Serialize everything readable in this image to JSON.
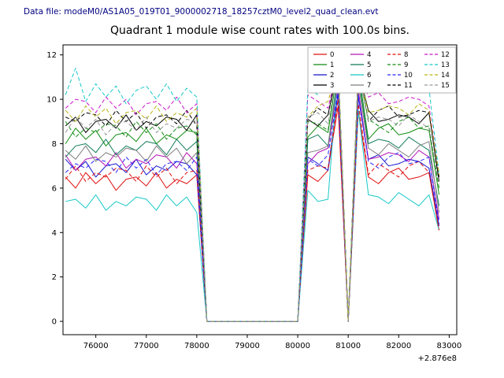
{
  "header": {
    "datafile": "Data file: modeM0/AS1A05_019T01_9000002718_18257cztM0_level2_quad_clean.evt"
  },
  "chart_data": {
    "type": "line",
    "title": "Quadrant 1 module wise count rates with 100.0s bins.",
    "xlabel": "",
    "ylabel": "",
    "x_offset_label": "+2.876e8",
    "xlim": [
      75350,
      83150
    ],
    "ylim": [
      -0.6,
      12.45
    ],
    "x_ticks": [
      76000,
      77000,
      78000,
      79000,
      80000,
      81000,
      82000,
      83000
    ],
    "y_ticks": [
      0,
      2,
      4,
      6,
      8,
      10,
      12
    ],
    "grid": false,
    "legend_position": "upper right",
    "x": [
      75400,
      75600,
      75800,
      76000,
      76200,
      76400,
      76600,
      76800,
      77000,
      77200,
      77400,
      77600,
      77800,
      78000,
      78200,
      78400,
      78600,
      78800,
      79000,
      79200,
      79400,
      79600,
      79800,
      80000,
      80200,
      80400,
      80600,
      80800,
      81000,
      81200,
      81400,
      81600,
      81800,
      82000,
      82200,
      82400,
      82600,
      82800
    ],
    "series": [
      {
        "name": "0",
        "color": "#e01010",
        "dash": false,
        "values": [
          6.5,
          6.0,
          6.7,
          6.2,
          6.6,
          5.9,
          6.4,
          6.5,
          6.1,
          6.7,
          6.0,
          6.4,
          6.2,
          6.6,
          0,
          0,
          0,
          0,
          0,
          0,
          0,
          0,
          0,
          0,
          6.6,
          6.3,
          6.8,
          9.7,
          0,
          9.5,
          6.5,
          6.2,
          6.7,
          6.9,
          6.4,
          6.5,
          6.7,
          4.1
        ]
      },
      {
        "name": "1",
        "color": "#108c10",
        "dash": false,
        "values": [
          8.0,
          8.7,
          8.2,
          8.6,
          7.9,
          8.4,
          8.5,
          8.1,
          8.7,
          8.0,
          8.4,
          8.2,
          8.6,
          8.5,
          0,
          0,
          0,
          0,
          0,
          0,
          0,
          0,
          0,
          0,
          8.3,
          8.8,
          8.5,
          11.5,
          0,
          11.3,
          8.2,
          8.7,
          8.9,
          8.4,
          8.5,
          8.7,
          8.6,
          5.7
        ]
      },
      {
        "name": "2",
        "color": "#1414cd",
        "dash": false,
        "values": [
          7.3,
          6.8,
          7.2,
          6.5,
          7.0,
          7.1,
          6.7,
          7.3,
          6.6,
          7.0,
          6.8,
          7.2,
          7.1,
          6.6,
          0,
          0,
          0,
          0,
          0,
          0,
          0,
          0,
          0,
          0,
          7.4,
          7.1,
          6.8,
          10.3,
          0,
          10.1,
          7.3,
          7.5,
          7.0,
          7.1,
          7.3,
          7.2,
          6.9,
          4.3
        ]
      },
      {
        "name": "3",
        "color": "#000000",
        "dash": false,
        "values": [
          8.8,
          9.2,
          8.5,
          9.0,
          9.1,
          8.7,
          9.3,
          8.6,
          9.0,
          8.8,
          9.2,
          9.1,
          8.6,
          9.3,
          0,
          0,
          0,
          0,
          0,
          0,
          0,
          0,
          0,
          0,
          9.1,
          8.8,
          9.3,
          11.5,
          0,
          11.3,
          9.5,
          9.0,
          9.1,
          9.3,
          9.2,
          8.9,
          9.4,
          6.3
        ]
      },
      {
        "name": "4",
        "color": "#b414b4",
        "dash": false,
        "values": [
          7.5,
          6.8,
          7.3,
          7.4,
          7.0,
          7.6,
          6.9,
          7.3,
          7.1,
          7.5,
          7.4,
          6.9,
          7.6,
          7.1,
          0,
          0,
          0,
          0,
          0,
          0,
          0,
          0,
          0,
          0,
          7.1,
          7.6,
          7.8,
          10.6,
          0,
          10.4,
          7.3,
          7.4,
          7.6,
          7.5,
          7.2,
          7.7,
          7.4,
          4.6
        ]
      },
      {
        "name": "5",
        "color": "#0f7a5a",
        "dash": false,
        "values": [
          7.4,
          7.9,
          8.0,
          7.6,
          8.2,
          7.5,
          7.9,
          7.7,
          8.1,
          8.0,
          7.5,
          8.2,
          7.7,
          8.1,
          0,
          0,
          0,
          0,
          0,
          0,
          0,
          0,
          0,
          0,
          8.2,
          8.4,
          7.9,
          11.2,
          0,
          11.0,
          8.0,
          8.2,
          8.1,
          7.8,
          8.3,
          8.0,
          7.7,
          5.2
        ]
      },
      {
        "name": "6",
        "color": "#18c8c8",
        "dash": false,
        "values": [
          5.4,
          5.5,
          5.1,
          5.7,
          5.0,
          5.4,
          5.2,
          5.6,
          5.5,
          5.0,
          5.7,
          5.2,
          5.6,
          4.9,
          0,
          0,
          0,
          0,
          0,
          0,
          0,
          0,
          0,
          0,
          5.9,
          5.4,
          5.5,
          11.4,
          0,
          9.5,
          5.7,
          5.6,
          5.3,
          5.8,
          5.5,
          5.2,
          5.7,
          4.1
        ]
      },
      {
        "name": "7",
        "color": "#7f7f7f",
        "dash": false,
        "values": [
          7.7,
          7.3,
          7.9,
          7.2,
          7.6,
          7.4,
          7.8,
          7.7,
          7.2,
          7.9,
          7.4,
          7.8,
          7.1,
          7.6,
          0,
          0,
          0,
          0,
          0,
          0,
          0,
          0,
          0,
          0,
          7.6,
          7.7,
          7.9,
          10.9,
          0,
          10.7,
          7.8,
          7.5,
          8.0,
          7.7,
          7.4,
          7.9,
          8.1,
          4.9
        ]
      },
      {
        "name": "8",
        "color": "#e01010",
        "dash": true,
        "values": [
          6.4,
          7.0,
          6.3,
          6.7,
          6.5,
          6.9,
          6.8,
          6.3,
          7.0,
          6.5,
          6.9,
          6.2,
          6.7,
          6.8,
          0,
          0,
          0,
          0,
          0,
          0,
          0,
          0,
          0,
          0,
          6.8,
          7.0,
          6.9,
          10.0,
          0,
          9.8,
          6.6,
          7.1,
          6.8,
          6.5,
          7.0,
          7.2,
          6.7,
          4.1
        ]
      },
      {
        "name": "9",
        "color": "#108c10",
        "dash": true,
        "values": [
          9.0,
          8.3,
          8.7,
          8.5,
          8.9,
          8.8,
          8.3,
          9.0,
          8.5,
          8.9,
          8.2,
          8.7,
          8.8,
          8.4,
          0,
          0,
          0,
          0,
          0,
          0,
          0,
          0,
          0,
          0,
          9.0,
          8.9,
          8.6,
          11.5,
          0,
          11.3,
          9.1,
          8.8,
          8.5,
          9.0,
          9.2,
          8.7,
          8.8,
          6.0
        ]
      },
      {
        "name": "10",
        "color": "#2828ff",
        "dash": true,
        "values": [
          6.7,
          7.1,
          6.9,
          7.3,
          7.2,
          6.7,
          7.4,
          6.9,
          7.3,
          6.6,
          7.1,
          7.2,
          6.8,
          7.4,
          0,
          0,
          0,
          0,
          0,
          0,
          0,
          0,
          0,
          0,
          7.3,
          7.0,
          7.5,
          10.4,
          0,
          10.2,
          7.2,
          6.9,
          7.4,
          7.6,
          7.1,
          7.2,
          7.4,
          4.4
        ]
      },
      {
        "name": "11",
        "color": "#000000",
        "dash": true,
        "values": [
          9.2,
          9.0,
          9.4,
          9.3,
          8.8,
          9.5,
          9.0,
          9.4,
          8.7,
          9.2,
          9.3,
          8.9,
          9.5,
          8.8,
          0,
          0,
          0,
          0,
          0,
          0,
          0,
          0,
          0,
          0,
          9.1,
          9.6,
          9.3,
          11.5,
          0,
          11.3,
          9.0,
          9.5,
          9.7,
          9.2,
          9.3,
          9.5,
          9.4,
          6.5
        ]
      },
      {
        "name": "12",
        "color": "#cc14cc",
        "dash": true,
        "values": [
          9.6,
          10.0,
          9.9,
          9.4,
          10.1,
          9.6,
          10.0,
          9.3,
          9.8,
          9.9,
          9.5,
          10.1,
          9.4,
          9.8,
          0,
          0,
          0,
          0,
          0,
          0,
          0,
          0,
          0,
          0,
          10.2,
          9.9,
          9.6,
          11.5,
          0,
          11.3,
          10.1,
          10.3,
          9.8,
          9.9,
          10.1,
          10.0,
          9.7,
          6.6
        ]
      },
      {
        "name": "13",
        "color": "#18c8c8",
        "dash": true,
        "values": [
          10.2,
          11.4,
          9.9,
          10.7,
          10.1,
          10.6,
          9.8,
          10.4,
          10.6,
          10.0,
          10.7,
          9.9,
          10.5,
          10.1,
          0,
          0,
          0,
          0,
          0,
          0,
          0,
          0,
          0,
          0,
          10.5,
          10.2,
          10.7,
          11.5,
          0,
          11.4,
          10.4,
          10.5,
          10.7,
          10.6,
          10.3,
          10.8,
          10.5,
          6.6
        ]
      },
      {
        "name": "14",
        "color": "#b8b414",
        "dash": true,
        "values": [
          9.5,
          9.0,
          9.7,
          9.2,
          9.6,
          8.9,
          9.4,
          9.5,
          9.1,
          9.7,
          9.0,
          9.4,
          9.2,
          9.6,
          0,
          0,
          0,
          0,
          0,
          0,
          0,
          0,
          0,
          0,
          9.2,
          9.7,
          9.9,
          11.5,
          0,
          11.3,
          9.4,
          9.5,
          9.7,
          9.6,
          9.3,
          9.8,
          9.5,
          6.6
        ]
      },
      {
        "name": "15",
        "color": "#969696",
        "dash": true,
        "values": [
          8.5,
          9.2,
          8.7,
          9.1,
          8.4,
          8.9,
          9.0,
          8.6,
          9.2,
          8.5,
          8.9,
          8.7,
          9.1,
          9.0,
          0,
          0,
          0,
          0,
          0,
          0,
          0,
          0,
          0,
          0,
          9.2,
          9.4,
          8.9,
          11.5,
          0,
          11.3,
          9.0,
          9.2,
          9.1,
          8.8,
          9.3,
          9.0,
          8.7,
          6.2
        ]
      }
    ]
  }
}
